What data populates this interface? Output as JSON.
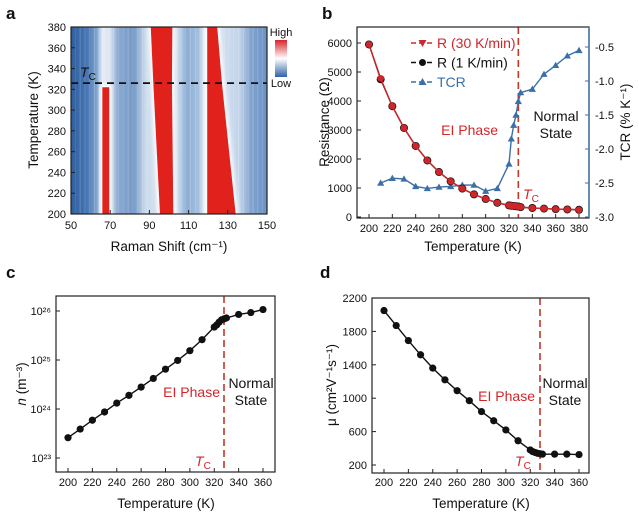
{
  "colors": {
    "red": "#d0262b",
    "black": "#111111",
    "blue": "#3b6fa8",
    "tc_line_a": "#111111",
    "tc_line": "#c0392b"
  },
  "chart_data": [
    {
      "panel": "a",
      "type": "heatmap",
      "xlabel": "Raman Shift (cm⁻¹)",
      "ylabel": "Temperature (K)",
      "xlim": [
        50,
        150
      ],
      "ylim": [
        200,
        380
      ],
      "xticks": [
        50,
        70,
        90,
        110,
        130,
        150
      ],
      "yticks": [
        200,
        220,
        240,
        260,
        280,
        300,
        320,
        340,
        360,
        380
      ],
      "tc": 326,
      "tc_label": {
        "main": "T",
        "sub": "C"
      },
      "colorbar": {
        "high": "High",
        "low": "Low"
      },
      "intensity_bands": [
        {
          "edges": [
            [
              200,
              66,
              69.5
            ],
            [
              322,
              66,
              69.5
            ]
          ]
        },
        {
          "edges": [
            [
              200,
              95.4,
              102.2
            ],
            [
              326,
              92,
              101.5
            ],
            [
              380,
              90.7,
              101.7
            ]
          ]
        },
        {
          "edges": [
            [
              200,
              119.5,
              134
            ],
            [
              326,
              119.5,
              127
            ],
            [
              380,
              119.5,
              124.6
            ]
          ]
        }
      ]
    },
    {
      "panel": "b",
      "type": "line",
      "xlabel": "Temperature (K)",
      "ylabel": "Resistance (Ω)",
      "y2label": "TCR (% K⁻¹)",
      "xlim": [
        193,
        387
      ],
      "ylim": [
        0,
        6500
      ],
      "y2lim": [
        -3.0,
        -0.1
      ],
      "xticks": [
        200,
        220,
        240,
        260,
        280,
        300,
        320,
        340,
        360,
        380
      ],
      "yticks": [
        0,
        1000,
        2000,
        3000,
        4000,
        5000,
        6000
      ],
      "y2ticks": [
        -3.0,
        -2.5,
        -2.0,
        -1.5,
        -1.0,
        -0.5
      ],
      "y2ticklabels": [
        "-3.0",
        "-2.5",
        "-2.0",
        "-1.5",
        "-1.0",
        "-0.5"
      ],
      "tc": 328,
      "tc_label": {
        "main": "T",
        "sub": "C"
      },
      "annotations": {
        "phase": "EI Phase",
        "normal1": "Normal",
        "normal2": "State"
      },
      "legend_position": "top-center",
      "series": [
        {
          "name": "R (1 K/min)",
          "axis": "left",
          "marker": "circle",
          "x": [
            200,
            210,
            220,
            230,
            240,
            250,
            260,
            270,
            280,
            290,
            300,
            310,
            320,
            322,
            324,
            326,
            328,
            330,
            340,
            350,
            360,
            370,
            380
          ],
          "y": [
            5950,
            4750,
            3820,
            3070,
            2450,
            1950,
            1550,
            1230,
            980,
            780,
            620,
            490,
            400,
            390,
            380,
            370,
            360,
            340,
            310,
            290,
            270,
            260,
            250
          ]
        },
        {
          "name": "R (30 K/min)",
          "axis": "left",
          "marker": "triangle-down",
          "x": [
            200,
            210,
            220,
            230,
            240,
            250,
            260,
            270,
            280,
            290,
            300,
            310,
            320,
            322,
            324,
            326,
            328,
            330,
            340,
            350,
            360,
            370,
            380
          ],
          "y": [
            5950,
            4780,
            3820,
            3070,
            2450,
            1950,
            1550,
            1230,
            980,
            780,
            620,
            490,
            400,
            390,
            380,
            370,
            360,
            340,
            310,
            290,
            270,
            260,
            250
          ]
        },
        {
          "name": "TCR",
          "axis": "right",
          "marker": "triangle-up",
          "x": [
            210,
            220,
            230,
            240,
            250,
            260,
            270,
            280,
            290,
            300,
            310,
            320,
            322,
            324,
            326,
            328,
            330,
            340,
            350,
            360,
            370,
            380
          ],
          "y": [
            -2.5,
            -2.43,
            -2.44,
            -2.55,
            -2.58,
            -2.56,
            -2.55,
            -2.53,
            -2.53,
            -2.62,
            -2.58,
            -2.22,
            -1.85,
            -1.65,
            -1.5,
            -1.3,
            -1.17,
            -1.12,
            -0.9,
            -0.77,
            -0.63,
            -0.55
          ]
        }
      ]
    },
    {
      "panel": "c",
      "type": "line",
      "xlabel": "Temperature (K)",
      "ylabel_var": "n",
      "ylabel_unit": " (m⁻³)",
      "yscale": "log",
      "xlim": [
        190,
        370
      ],
      "ylim": [
        5e+22,
        2e+26
      ],
      "xticks": [
        200,
        220,
        240,
        260,
        280,
        300,
        320,
        340,
        360
      ],
      "yticks": [
        1e+23,
        1e+24,
        1e+25,
        1e+26
      ],
      "yticklabels": [
        "10²³",
        "10²⁴",
        "10²⁵",
        "10²⁶"
      ],
      "tc": 328,
      "tc_label": {
        "main": "T",
        "sub": "C"
      },
      "annotations": {
        "phase": "EI Phase",
        "normal1": "Normal",
        "normal2": "State"
      },
      "series": [
        {
          "x": [
            200,
            210,
            220,
            230,
            240,
            250,
            260,
            270,
            280,
            290,
            300,
            310,
            320,
            322,
            324,
            326,
            328,
            330,
            340,
            350,
            360
          ],
          "y": [
            2.6e+23,
            3.9e+23,
            5.9e+23,
            8.7e+23,
            1.32e+24,
            1.9e+24,
            2.8e+24,
            4.2e+24,
            6.5e+24,
            9.8e+24,
            1.55e+25,
            2.6e+25,
            4.7e+25,
            5.2e+25,
            5.9e+25,
            6.6e+25,
            6.9e+25,
            7.2e+25,
            8.5e+25,
            9.3e+25,
            1.07e+26
          ]
        }
      ]
    },
    {
      "panel": "d",
      "type": "line",
      "xlabel": "Temperature (K)",
      "ylabel": "μ (cm²V⁻¹s⁻¹)",
      "xlim": [
        190,
        370
      ],
      "ylim": [
        100,
        2200
      ],
      "xticks": [
        200,
        220,
        240,
        260,
        280,
        300,
        320,
        340,
        360
      ],
      "yticks": [
        200,
        600,
        1000,
        1400,
        1800,
        2200
      ],
      "tc": 328,
      "tc_label": {
        "main": "T",
        "sub": "C"
      },
      "annotations": {
        "phase": "EI Phase",
        "normal1": "Normal",
        "normal2": "State"
      },
      "series": [
        {
          "x": [
            200,
            210,
            220,
            230,
            240,
            250,
            260,
            270,
            280,
            290,
            300,
            310,
            320,
            322,
            324,
            326,
            328,
            330,
            340,
            350,
            360
          ],
          "y": [
            2050,
            1870,
            1690,
            1520,
            1360,
            1220,
            1090,
            970,
            840,
            730,
            620,
            490,
            380,
            360,
            350,
            340,
            335,
            330,
            330,
            330,
            325
          ]
        }
      ]
    }
  ]
}
